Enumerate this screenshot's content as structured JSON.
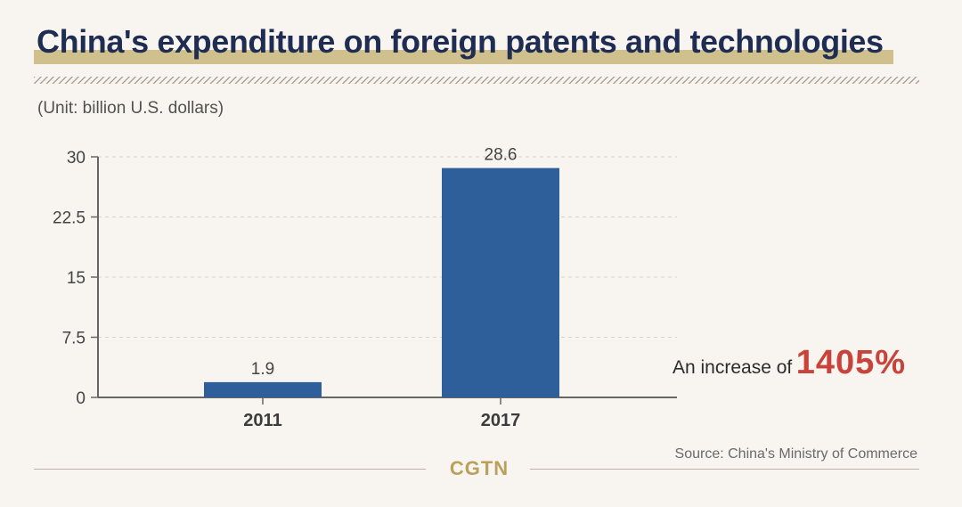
{
  "header": {
    "title": "China's expenditure on foreign patents and technologies",
    "unit": "(Unit: billion U.S. dollars)"
  },
  "colors": {
    "bar": "#2f5f9a",
    "title": "#1f2d52",
    "highlight": "#cfc08d",
    "accent_value": "#c8443b",
    "brand": "#b9a15b"
  },
  "callout": {
    "label": "An increase of",
    "value": "1405%"
  },
  "footer": {
    "source": "Source: China's Ministry of Commerce",
    "brand": "CGTN"
  },
  "chart_data": {
    "type": "bar",
    "categories": [
      "2011",
      "2017"
    ],
    "values": [
      1.9,
      28.6
    ],
    "value_labels": [
      "1.9",
      "28.6"
    ],
    "ylim": [
      0,
      30
    ],
    "yticks": [
      0,
      7.5,
      15,
      22.5,
      30
    ],
    "ytick_labels": [
      "0",
      "7.5",
      "15",
      "22.5",
      "30"
    ],
    "grid": true
  }
}
